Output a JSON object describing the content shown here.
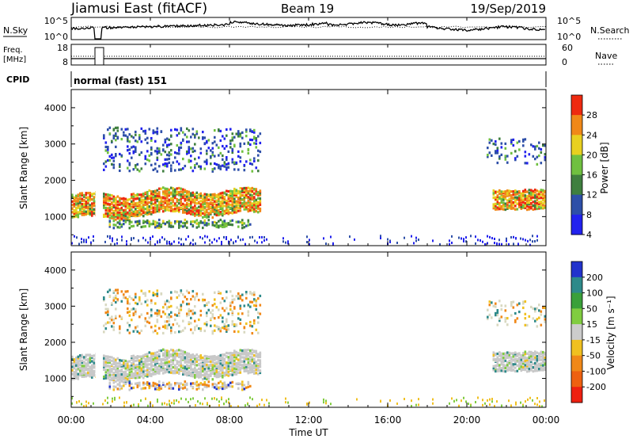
{
  "header": {
    "station": "Jiamusi East (fitACF)",
    "beam": "Beam 19",
    "date": "19/Sep/2019"
  },
  "panels": {
    "nsky_label": "N.Sky",
    "nsearch_label": "N.Search",
    "freq_label_1": "Freq.",
    "freq_label_2": "[MHz]",
    "nave_label": "Nave",
    "cpid_label": "CPID",
    "cpid_value": "normal (fast) 151",
    "nsky_ticks": [
      "10^5",
      "10^0"
    ],
    "nsearch_ticks": [
      "10^5",
      "10^0"
    ],
    "freq_ticks": [
      "18",
      "8"
    ],
    "nave_ticks": [
      "60",
      "0"
    ]
  },
  "chart_data": [
    {
      "type": "heatmap",
      "name": "power",
      "ylabel": "Slant Range [km]",
      "yticks": [
        1000,
        2000,
        3000,
        4000
      ],
      "ylim": [
        200,
        4500
      ],
      "xlim_hours": [
        0,
        24
      ],
      "colorbar_label": "Power [dB]",
      "colorbar_ticks": [
        4,
        8,
        12,
        16,
        20,
        24,
        28
      ],
      "colorbar_colors": [
        "#2222ee",
        "#2e4fa8",
        "#3f7f3f",
        "#70c040",
        "#e8d020",
        "#f08818",
        "#ee2a10"
      ],
      "regions": [
        {
          "hours": [
            0,
            9.5
          ],
          "range_km": [
            1000,
            1650
          ],
          "level": "high"
        },
        {
          "hours": [
            1.8,
            9.0
          ],
          "range_km": [
            750,
            950
          ],
          "level": "medium"
        },
        {
          "hours": [
            1.5,
            9.5
          ],
          "range_km": [
            2300,
            3500
          ],
          "level": "low"
        },
        {
          "hours": [
            21.3,
            24
          ],
          "range_km": [
            1250,
            1750
          ],
          "level": "high"
        },
        {
          "hours": [
            21.0,
            24
          ],
          "range_km": [
            2500,
            3200
          ],
          "level": "low"
        }
      ]
    },
    {
      "type": "heatmap",
      "name": "velocity",
      "ylabel": "Slant Range [km]",
      "yticks": [
        1000,
        2000,
        3000,
        4000
      ],
      "ylim": [
        200,
        4500
      ],
      "xlim_hours": [
        0,
        24
      ],
      "colorbar_label": "Velocity [m s⁻¹]",
      "colorbar_ticks": [
        200,
        100,
        50,
        15,
        -15,
        -50,
        -100,
        -200
      ],
      "colorbar_colors": [
        "#2233cc",
        "#2e8a8a",
        "#3aa03a",
        "#80cc40",
        "#cccccc",
        "#f0c020",
        "#f08818",
        "#ee6010",
        "#ee2010"
      ],
      "x_ticks": [
        "00:00",
        "04:00",
        "08:00",
        "12:00",
        "16:00",
        "20:00",
        "00:00"
      ],
      "xlabel": "Time UT"
    }
  ]
}
